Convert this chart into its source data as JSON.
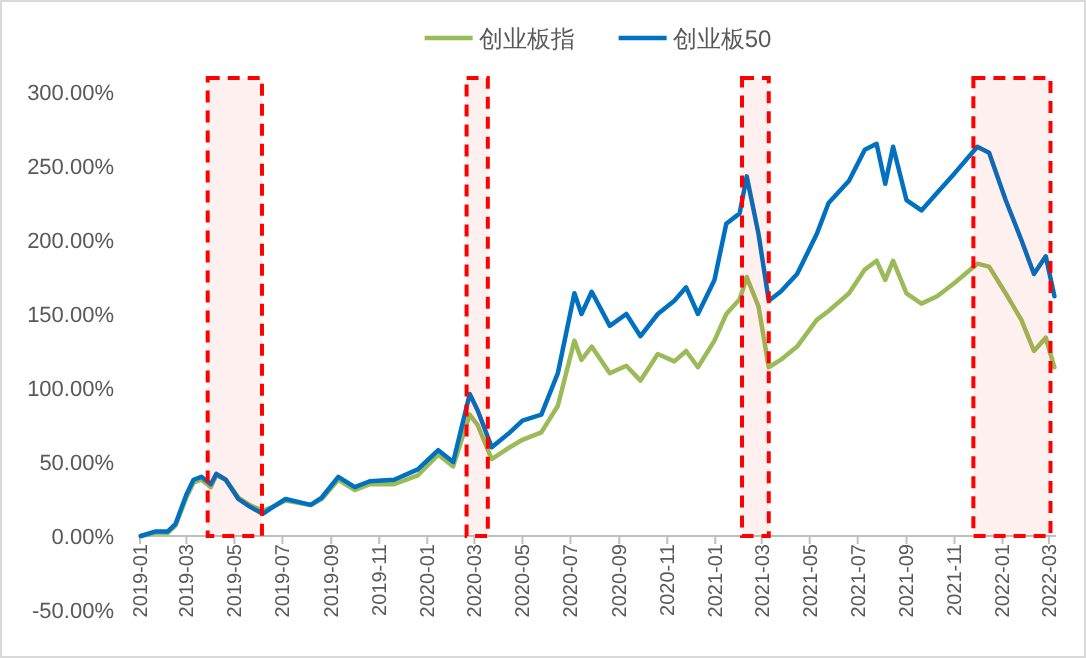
{
  "chart_data": {
    "type": "line",
    "legend": "top",
    "grid": false,
    "marker": "none",
    "line_style": "solid",
    "x": [
      "2019-01-02",
      "2019-01-20",
      "2019-02-05",
      "2019-02-15",
      "2019-03-01",
      "2019-03-10",
      "2019-03-20",
      "2019-04-01",
      "2019-04-08",
      "2019-04-20",
      "2019-05-06",
      "2019-05-20",
      "2019-06-06",
      "2019-06-20",
      "2019-07-05",
      "2019-08-06",
      "2019-08-20",
      "2019-09-10",
      "2019-10-01",
      "2019-10-20",
      "2019-11-20",
      "2019-12-20",
      "2020-01-15",
      "2020-02-03",
      "2020-02-24",
      "2020-03-05",
      "2020-03-23",
      "2020-04-15",
      "2020-05-01",
      "2020-05-25",
      "2020-06-15",
      "2020-07-06",
      "2020-07-15",
      "2020-07-28",
      "2020-08-20",
      "2020-09-10",
      "2020-09-28",
      "2020-10-20",
      "2020-11-10",
      "2020-11-25",
      "2020-12-10",
      "2020-12-31",
      "2021-01-15",
      "2021-02-01",
      "2021-02-10",
      "2021-02-25",
      "2021-03-10",
      "2021-03-25",
      "2021-04-15",
      "2021-05-10",
      "2021-05-25",
      "2021-06-20",
      "2021-07-10",
      "2021-07-25",
      "2021-08-05",
      "2021-08-15",
      "2021-09-01",
      "2021-09-20",
      "2021-10-10",
      "2021-11-01",
      "2021-11-30",
      "2021-12-15",
      "2022-01-05",
      "2022-01-25",
      "2022-02-10",
      "2022-02-25",
      "2022-03-08"
    ],
    "series": [
      {
        "name": "创业板指",
        "color": "#9bbb59",
        "values": [
          0,
          2,
          2,
          7,
          26,
          36,
          38,
          33,
          41,
          38,
          26,
          21,
          17,
          20,
          24,
          21,
          25,
          38,
          31,
          35,
          35,
          41,
          55,
          47,
          82,
          75,
          52,
          60,
          65,
          70,
          88,
          132,
          119,
          128,
          110,
          115,
          105,
          123,
          118,
          125,
          114,
          132,
          150,
          160,
          175,
          155,
          114,
          119,
          128,
          146,
          152,
          164,
          180,
          186,
          173,
          186,
          164,
          157,
          162,
          171,
          184,
          182,
          164,
          146,
          125,
          134,
          114
        ]
      },
      {
        "name": "创业板50",
        "color": "#0070c0",
        "values": [
          0,
          3,
          3,
          8,
          28,
          38,
          40,
          35,
          42,
          38,
          25,
          20,
          15,
          20,
          25,
          21,
          26,
          40,
          33,
          37,
          38,
          45,
          58,
          50,
          96,
          85,
          60,
          70,
          78,
          82,
          110,
          164,
          150,
          165,
          142,
          150,
          135,
          150,
          159,
          168,
          150,
          173,
          211,
          218,
          243,
          204,
          159,
          165,
          177,
          204,
          225,
          240,
          261,
          265,
          238,
          263,
          227,
          220,
          232,
          245,
          263,
          259,
          227,
          200,
          177,
          189,
          162
        ]
      }
    ],
    "xlim": [
      "2019-01-01",
      "2022-03-10"
    ],
    "xticks": [
      "2019-01",
      "2019-03",
      "2019-05",
      "2019-07",
      "2019-09",
      "2019-11",
      "2020-01",
      "2020-03",
      "2020-05",
      "2020-07",
      "2020-09",
      "2020-11",
      "2021-01",
      "2021-03",
      "2021-05",
      "2021-07",
      "2021-09",
      "2021-11",
      "2022-01",
      "2022-03"
    ],
    "ylim": [
      -50,
      300
    ],
    "yticks": [
      {
        "value": -50,
        "label": "-50.00%"
      },
      {
        "value": 0,
        "label": "0.00%"
      },
      {
        "value": 50,
        "label": "50.00%"
      },
      {
        "value": 100,
        "label": "100.00%"
      },
      {
        "value": 150,
        "label": "150.00%"
      },
      {
        "value": 200,
        "label": "200.00%"
      },
      {
        "value": 250,
        "label": "250.00%"
      },
      {
        "value": 300,
        "label": "300.00%"
      }
    ],
    "bands": [
      {
        "axis": "x",
        "from": "2019-03-28",
        "to": "2019-06-05",
        "color": "#ff0000"
      },
      {
        "axis": "x",
        "from": "2020-02-20",
        "to": "2020-03-18",
        "color": "#ff0000"
      },
      {
        "axis": "x",
        "from": "2021-02-04",
        "to": "2021-03-10",
        "color": "#ff0000"
      },
      {
        "axis": "x",
        "from": "2021-11-25",
        "to": "2022-03-03",
        "color": "#ff0000"
      }
    ]
  }
}
